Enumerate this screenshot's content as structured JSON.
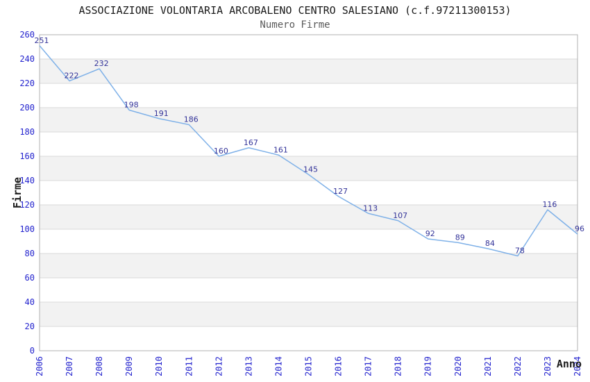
{
  "chart_data": {
    "type": "line",
    "title": "ASSOCIAZIONE VOLONTARIA ARCOBALENO CENTRO SALESIANO (c.f.97211300153)",
    "subtitle": "Numero Firme",
    "xlabel": "Anno",
    "ylabel": "Firme",
    "categories": [
      "2006",
      "2007",
      "2008",
      "2009",
      "2010",
      "2011",
      "2012",
      "2013",
      "2014",
      "2015",
      "2016",
      "2017",
      "2018",
      "2019",
      "2020",
      "2021",
      "2022",
      "2023",
      "2024"
    ],
    "values": [
      251,
      222,
      232,
      198,
      191,
      186,
      160,
      167,
      161,
      145,
      127,
      113,
      107,
      92,
      89,
      84,
      78,
      116,
      96
    ],
    "series": [
      {
        "name": "Numero Firme",
        "values": [
          251,
          222,
          232,
          198,
          191,
          186,
          160,
          167,
          161,
          145,
          127,
          113,
          107,
          92,
          89,
          84,
          78,
          116,
          96
        ]
      }
    ],
    "ylim": [
      0,
      260
    ],
    "yticks": [
      0,
      20,
      40,
      60,
      80,
      100,
      120,
      140,
      160,
      180,
      200,
      220,
      240,
      260
    ],
    "grid": true,
    "legend_position": "none",
    "plot_bands": "alternating-horizontal",
    "point_labels_visible": true,
    "colors": {
      "line": "#7fb1e8",
      "point_label": "#333399",
      "tick_label": "#2323ce",
      "band_main": "#ffffff",
      "band_alt": "#f2f2f2",
      "gridline": "#d9d9d9",
      "plot_border": "#b0b0b0",
      "title": "#1a1a1a",
      "subtitle": "#5a5a5a",
      "axis_title": "#1a1a1a",
      "background": "#ffffff"
    }
  }
}
